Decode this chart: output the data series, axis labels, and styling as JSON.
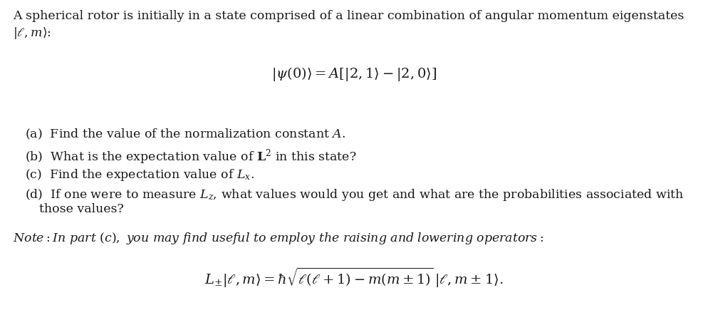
{
  "background_color": "#ffffff",
  "fig_width": 9.95,
  "fig_height": 4.42,
  "dpi": 100,
  "text_color": "#1a1a1a",
  "font_size_main": 12.5,
  "font_size_eq": 14
}
